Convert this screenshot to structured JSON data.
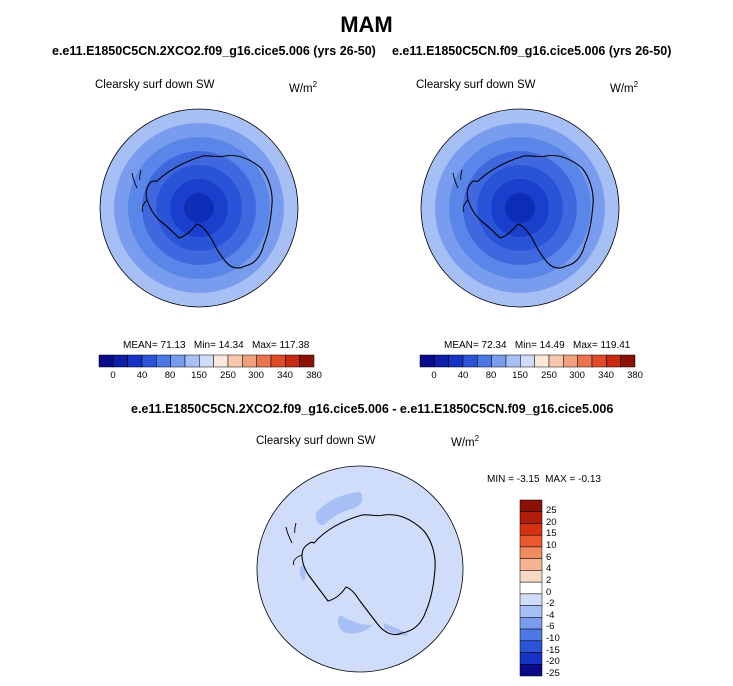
{
  "figure": {
    "season": "MAM"
  },
  "panels": [
    {
      "title": "e.e11.E1850C5CN.2XCO2.f09_g16.cice5.006 (yrs 26-50)",
      "variable": "Clearsky surf down SW",
      "units": "W/m",
      "units_exp": "2",
      "stats": {
        "mean_label": "MEAN=",
        "mean": "71.13",
        "min_label": "Min=",
        "min": "14.34",
        "max_label": "Max=",
        "max": "117.38"
      },
      "colorbar_ticks": [
        "0",
        "40",
        "80",
        "150",
        "250",
        "300",
        "340",
        "380"
      ]
    },
    {
      "title": "e.e11.E1850C5CN.f09_g16.cice5.006 (yrs 26-50)",
      "variable": "Clearsky surf down SW",
      "units": "W/m",
      "units_exp": "2",
      "stats": {
        "mean_label": "MEAN=",
        "mean": "72.34",
        "min_label": "Min=",
        "min": "14.49",
        "max_label": "Max=",
        "max": "119.41"
      },
      "colorbar_ticks": [
        "0",
        "40",
        "80",
        "150",
        "250",
        "300",
        "340",
        "380"
      ]
    }
  ],
  "diff_panel": {
    "title": "e.e11.E1850C5CN.2XCO2.f09_g16.cice5.006 - e.e11.E1850C5CN.f09_g16.cice5.006",
    "variable": "Clearsky surf down SW",
    "units": "W/m",
    "units_exp": "2",
    "stats": {
      "min_label": "MIN =",
      "min": "-3.15",
      "max_label": "MAX =",
      "max": "-0.13"
    },
    "colorbar_ticks": [
      "25",
      "20",
      "15",
      "10",
      "6",
      "4",
      "2",
      "0",
      "-2",
      "-4",
      "-6",
      "-10",
      "-15",
      "-20",
      "-25"
    ]
  },
  "colors": {
    "abs_scale": [
      "#0a0a8a",
      "#0e1fa6",
      "#1533c4",
      "#2a54d8",
      "#4c78e6",
      "#7a9cef",
      "#a6bff5",
      "#cfdcfa",
      "#fbe9dc",
      "#f6c8ad",
      "#f0a07d",
      "#ea7350",
      "#df4a28",
      "#c42b12",
      "#8b1005"
    ],
    "diff_scale": [
      "#8b1005",
      "#b01c0a",
      "#d4320f",
      "#ea5a2e",
      "#f08a60",
      "#f5b392",
      "#f9d8c4",
      "#ffffff",
      "#cfdcfa",
      "#a6bff5",
      "#7a9cef",
      "#4c78e6",
      "#2a54d8",
      "#1533c4",
      "#0a0a8a"
    ],
    "rings": [
      "#a6bff5",
      "#7a9cef",
      "#5a86ea",
      "#3f68de",
      "#2a54d8",
      "#1a3fcc",
      "#0f2eb8"
    ],
    "diff_bg": "#cfdcfa",
    "diff_patch": "#a6bff5"
  }
}
